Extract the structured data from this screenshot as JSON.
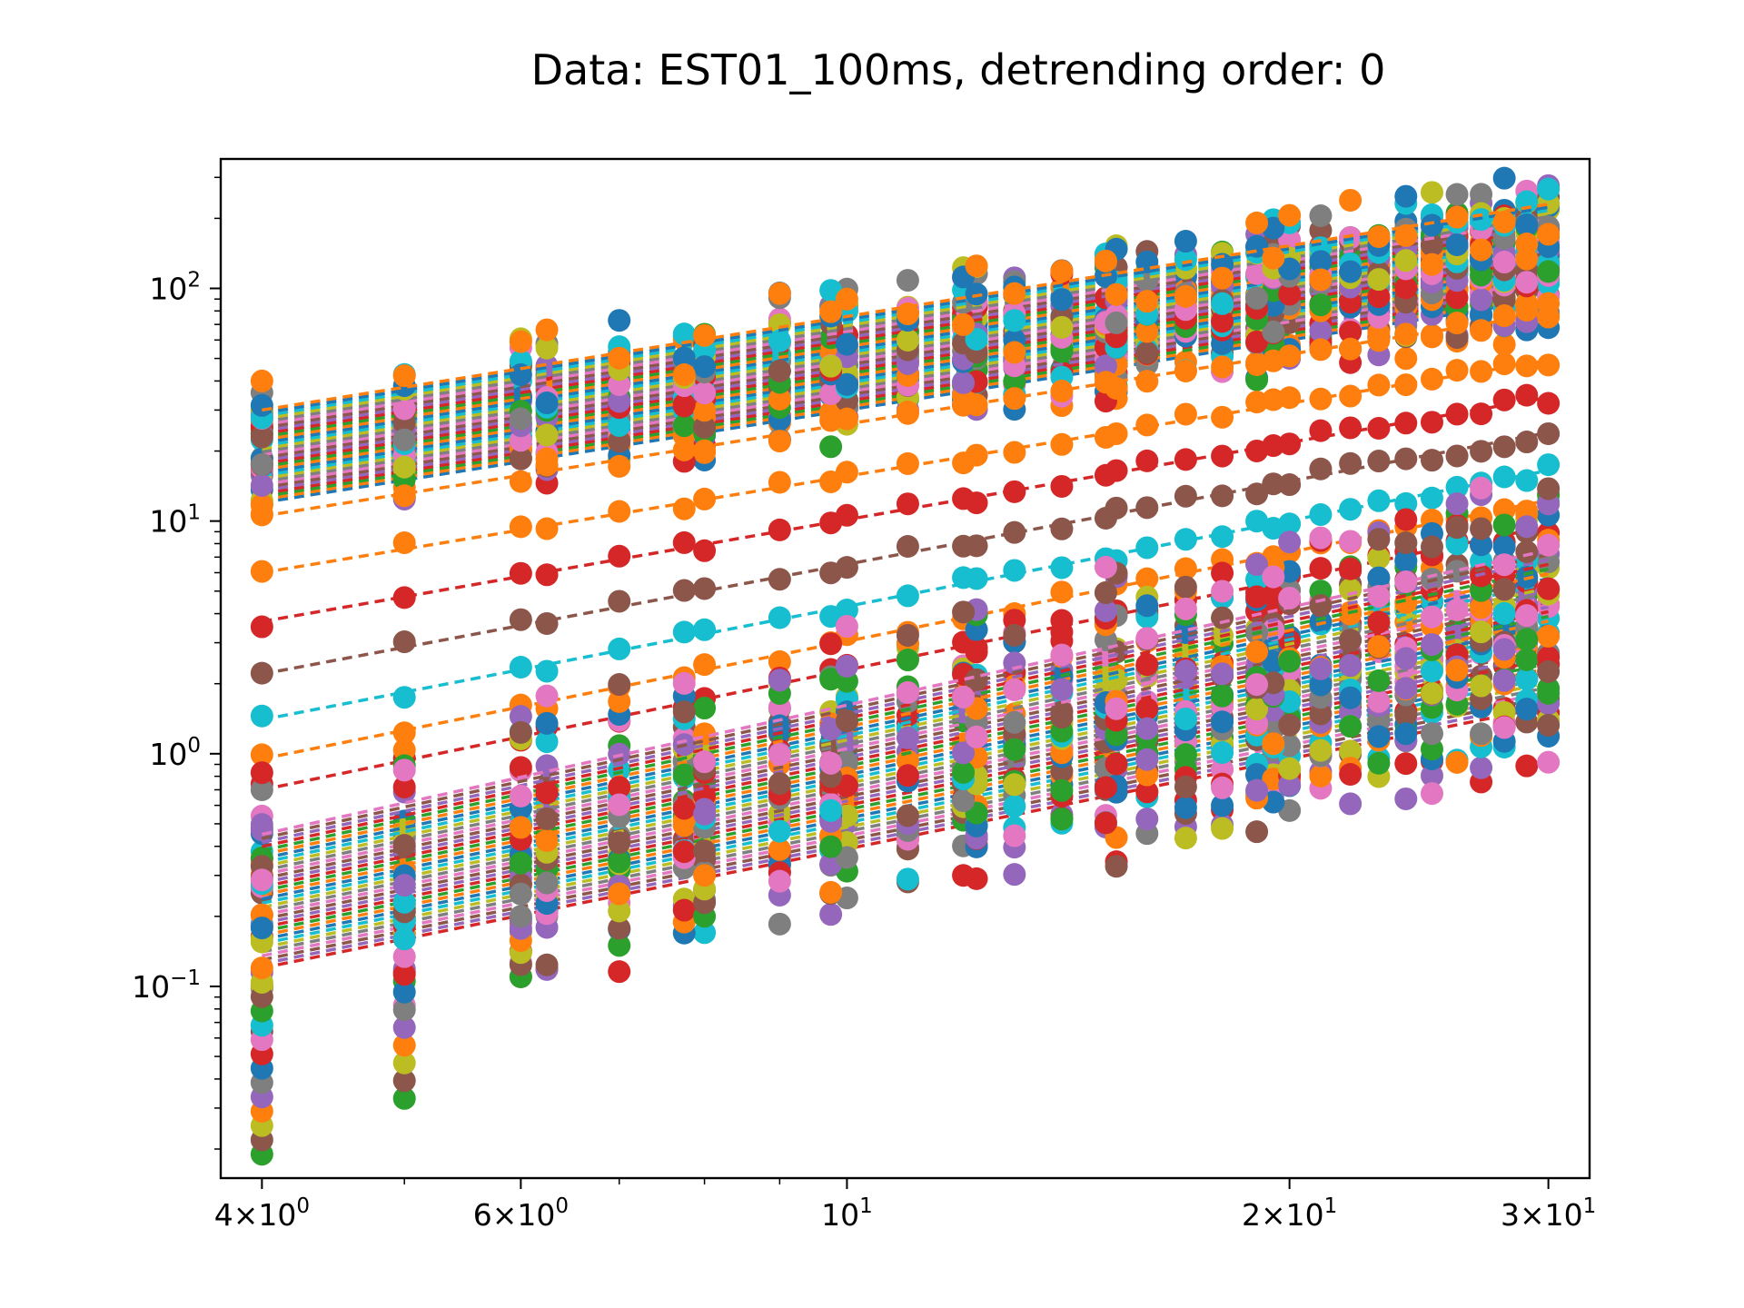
{
  "chart_data": {
    "type": "scatter",
    "title": "Data: EST01_100ms, detrending order: 0",
    "xlabel": "",
    "ylabel": "",
    "xscale": "log",
    "yscale": "log",
    "xlim": [
      3.75,
      32
    ],
    "ylim": [
      0.015,
      360
    ],
    "grid": false,
    "legend": "none",
    "x_points": [
      4,
      5,
      6,
      6.25,
      7,
      7.75,
      8,
      9,
      9.75,
      10,
      11,
      12,
      12.25,
      13,
      14,
      15,
      15.25,
      16,
      17,
      18,
      19,
      19.5,
      20,
      21,
      22,
      23,
      24,
      25,
      26,
      27,
      28,
      29,
      30
    ],
    "x_ticks": [
      {
        "value": 4,
        "base": "4×10",
        "exp": "0"
      },
      {
        "value": 6,
        "base": "6×10",
        "exp": "0"
      },
      {
        "value": 10,
        "base": "10",
        "exp": "1"
      },
      {
        "value": 20,
        "base": "2×10",
        "exp": "1"
      },
      {
        "value": 30,
        "base": "3×10",
        "exp": "1"
      }
    ],
    "y_ticks": [
      {
        "value": 100,
        "base": "10",
        "exp": "2"
      },
      {
        "value": 10,
        "base": "10",
        "exp": "1"
      },
      {
        "value": 1,
        "base": "10",
        "exp": "0"
      },
      {
        "value": 0.1,
        "base": "10",
        "exp": "−1"
      }
    ],
    "series_colors": [
      "#1f77b4",
      "#ff7f0e",
      "#2ca02c",
      "#d62728",
      "#9467bd",
      "#8c564b",
      "#e377c2",
      "#7f7f7f",
      "#bcbd22",
      "#17becf"
    ],
    "fit_lines_highlighted": [
      {
        "intercept_at_4": 6.0,
        "value_at_30": 49,
        "color": "#ff7f0e"
      },
      {
        "intercept_at_4": 3.7,
        "value_at_30": 34,
        "color": "#d62728"
      },
      {
        "intercept_at_4": 2.2,
        "value_at_30": 24,
        "color": "#8c564b"
      },
      {
        "intercept_at_4": 1.4,
        "value_at_30": 16.5,
        "color": "#17becf"
      },
      {
        "intercept_at_4": 0.95,
        "value_at_30": 12.3,
        "color": "#ff7f0e"
      },
      {
        "intercept_at_4": 0.7,
        "value_at_30": 9.5,
        "color": "#d62728"
      },
      {
        "intercept_at_4": 10.5,
        "value_at_30": 78,
        "color": "#ff7f0e"
      }
    ],
    "upper_band": {
      "at_4": [
        12,
        30
      ],
      "at_30": [
        90,
        230
      ]
    },
    "lower_band": {
      "at_4": [
        0.12,
        0.45
      ],
      "at_30": [
        1.6,
        7.5
      ]
    },
    "scatter_low_tail": {
      "at_4_min": 0.019,
      "at_5_min": 0.033,
      "at_6_min": 0.11,
      "at_8_min": 0.2
    }
  }
}
